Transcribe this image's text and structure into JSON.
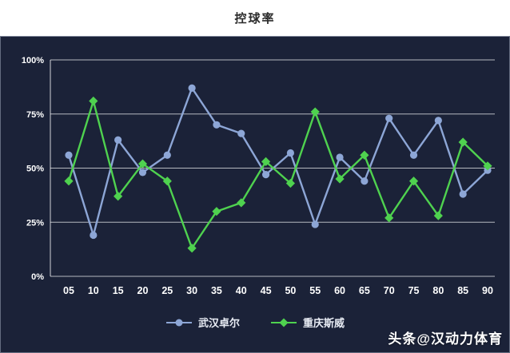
{
  "title": "控球率",
  "watermark": "头条@汉动力体育",
  "legend": {
    "items": [
      {
        "label": "武汉卓尔"
      },
      {
        "label": "重庆斯威"
      }
    ]
  },
  "colors": {
    "panel_background": "#1b2238",
    "title_band_background": "#ffffff",
    "title_text": "#2b2b2b",
    "gridline": "rgba(255,255,255,0.68)",
    "axis_line": "rgba(255,255,255,0.8)",
    "tick_text": "#ffffff"
  },
  "chart_data": {
    "type": "line",
    "title": "控球率",
    "x": [
      "05",
      "10",
      "15",
      "20",
      "25",
      "30",
      "35",
      "40",
      "45",
      "50",
      "55",
      "60",
      "65",
      "70",
      "75",
      "80",
      "85",
      "90"
    ],
    "series": [
      {
        "name": "武汉卓尔",
        "color": "#8da6d6",
        "marker": "circle",
        "values": [
          56,
          19,
          63,
          48,
          56,
          87,
          70,
          66,
          47,
          57,
          24,
          55,
          44,
          73,
          56,
          72,
          38,
          49
        ]
      },
      {
        "name": "重庆斯威",
        "color": "#4fd24f",
        "marker": "diamond",
        "values": [
          44,
          81,
          37,
          52,
          44,
          13,
          30,
          34,
          53,
          43,
          76,
          45,
          56,
          27,
          44,
          28,
          62,
          51
        ]
      }
    ],
    "ylim": [
      0,
      100
    ],
    "yticks": [
      0,
      25,
      50,
      75,
      100
    ],
    "ytick_labels": [
      "0%",
      "25%",
      "50%",
      "75%",
      "100%"
    ],
    "xlabel": "",
    "ylabel": "",
    "grid": true,
    "legend_position": "bottom"
  }
}
